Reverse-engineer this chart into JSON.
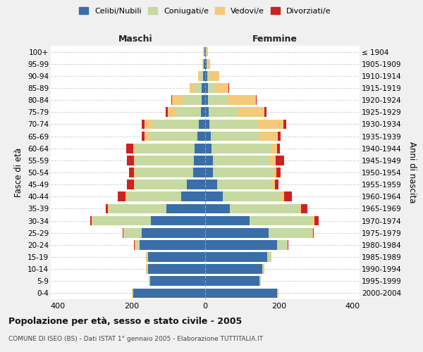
{
  "age_groups": [
    "100+",
    "95-99",
    "90-94",
    "85-89",
    "80-84",
    "75-79",
    "70-74",
    "65-69",
    "60-64",
    "55-59",
    "50-54",
    "45-49",
    "40-44",
    "35-39",
    "30-34",
    "25-29",
    "20-24",
    "15-19",
    "10-14",
    "5-9",
    "0-4"
  ],
  "birth_years": [
    "≤ 1904",
    "1905-1909",
    "1910-1914",
    "1915-1919",
    "1920-1924",
    "1925-1929",
    "1930-1934",
    "1935-1939",
    "1940-1944",
    "1945-1949",
    "1950-1954",
    "1955-1959",
    "1960-1964",
    "1965-1969",
    "1970-1974",
    "1975-1979",
    "1980-1984",
    "1985-1989",
    "1990-1994",
    "1995-1999",
    "2000-2004"
  ],
  "maschi": {
    "celibi": [
      2,
      3,
      5,
      10,
      10,
      12,
      18,
      22,
      28,
      30,
      33,
      50,
      65,
      105,
      148,
      172,
      178,
      155,
      155,
      150,
      195
    ],
    "coniugati": [
      2,
      3,
      10,
      18,
      52,
      68,
      125,
      130,
      160,
      158,
      155,
      140,
      148,
      158,
      158,
      48,
      12,
      5,
      5,
      3,
      3
    ],
    "vedovi": [
      1,
      2,
      5,
      15,
      28,
      22,
      22,
      12,
      8,
      6,
      5,
      4,
      3,
      2,
      2,
      2,
      2,
      1,
      1,
      1,
      1
    ],
    "divorziati": [
      0,
      0,
      0,
      0,
      2,
      6,
      8,
      8,
      18,
      18,
      15,
      18,
      22,
      5,
      5,
      3,
      2,
      1,
      0,
      0,
      0
    ]
  },
  "femmine": {
    "nubili": [
      2,
      3,
      5,
      8,
      8,
      10,
      12,
      16,
      18,
      22,
      22,
      32,
      48,
      68,
      120,
      172,
      195,
      168,
      155,
      148,
      195
    ],
    "coniugate": [
      2,
      3,
      5,
      18,
      52,
      80,
      132,
      130,
      162,
      155,
      162,
      150,
      158,
      188,
      172,
      118,
      28,
      10,
      5,
      3,
      3
    ],
    "vedove": [
      3,
      8,
      28,
      38,
      78,
      72,
      68,
      52,
      15,
      15,
      10,
      8,
      8,
      5,
      5,
      3,
      2,
      2,
      1,
      1,
      1
    ],
    "divorziate": [
      0,
      0,
      0,
      2,
      2,
      5,
      8,
      8,
      8,
      22,
      12,
      10,
      22,
      18,
      12,
      3,
      2,
      1,
      0,
      0,
      0
    ]
  },
  "colors": {
    "celibi": "#3a6ea8",
    "coniugati": "#c5d9a0",
    "vedovi": "#f5c97a",
    "divorziati": "#cc2222"
  },
  "xlim": 420,
  "title": "Popolazione per età, sesso e stato civile - 2005",
  "subtitle": "COMUNE DI ISEO (BS) - Dati ISTAT 1° gennaio 2005 - Elaborazione TUTTITALIA.IT",
  "ylabel_left": "Fasce di età",
  "ylabel_right": "Anni di nascita",
  "legend_labels": [
    "Celibi/Nubili",
    "Coniugati/e",
    "Vedovi/e",
    "Divorziati/e"
  ],
  "background_color": "#f0f0f0",
  "plot_bg": "#ffffff",
  "header_maschi": "Maschi",
  "header_femmine": "Femmine"
}
